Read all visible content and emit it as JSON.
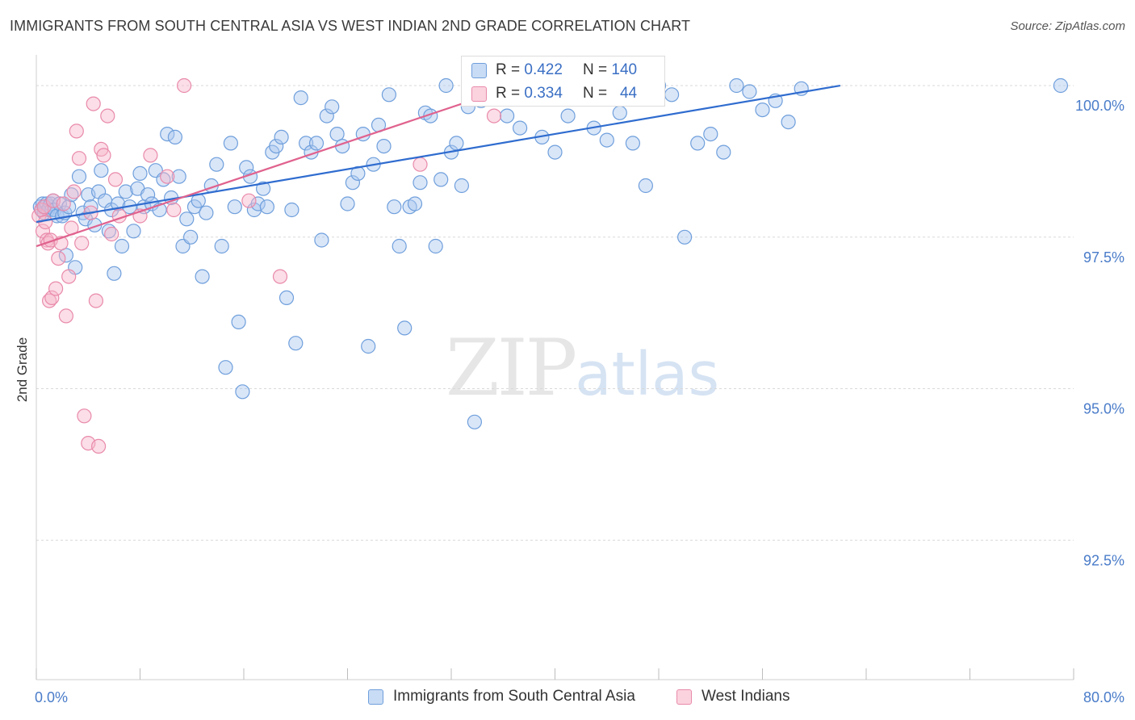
{
  "header": {
    "title": "IMMIGRANTS FROM SOUTH CENTRAL ASIA VS WEST INDIAN 2ND GRADE CORRELATION CHART",
    "source": "Source: ZipAtlas.com"
  },
  "watermark": {
    "zip": "ZIP",
    "atlas": "atlas"
  },
  "stats": {
    "rows": [
      {
        "r_label": "R =",
        "r_value": "0.422",
        "n_label": "N =",
        "n_value": "140",
        "color": "#aac8f0"
      },
      {
        "r_label": "R =",
        "r_value": "0.334",
        "n_label": "N =",
        "n_value": "44",
        "color": "#f7b6c9"
      }
    ]
  },
  "legend": {
    "items": [
      {
        "label": "Immigrants from South Central Asia",
        "color": "#aac8f0"
      },
      {
        "label": "West Indians",
        "color": "#f7b6c9"
      }
    ]
  },
  "chart_data": {
    "type": "scatter",
    "title": "IMMIGRANTS FROM SOUTH CENTRAL ASIA VS WEST INDIAN 2ND GRADE CORRELATION CHART",
    "xlabel": "",
    "ylabel": "2nd Grade",
    "xlim": [
      0,
      80
    ],
    "ylim": [
      90.2,
      100.4
    ],
    "x_tick_labels": [
      "0.0%",
      "80.0%"
    ],
    "y_ticks": [
      92.5,
      95.0,
      97.5,
      100.0
    ],
    "y_tick_labels": [
      "92.5%",
      "95.0%",
      "97.5%",
      "100.0%"
    ],
    "grid": true,
    "legend_position": "bottom",
    "series": [
      {
        "name": "Immigrants from South Central Asia",
        "color": "#6f9fdc",
        "fill": "#aac8f0",
        "trend": {
          "x": [
            0,
            62
          ],
          "y": [
            97.75,
            100.0
          ]
        },
        "points": [
          [
            0.3,
            98.0
          ],
          [
            0.4,
            97.95
          ],
          [
            0.5,
            98.05
          ],
          [
            0.6,
            97.9
          ],
          [
            0.7,
            98.0
          ],
          [
            0.8,
            98.05
          ],
          [
            0.9,
            97.95
          ],
          [
            1.0,
            98.0
          ],
          [
            1.1,
            98.05
          ],
          [
            1.2,
            97.95
          ],
          [
            1.3,
            98.1
          ],
          [
            1.4,
            97.95
          ],
          [
            1.6,
            97.85
          ],
          [
            1.8,
            98.05
          ],
          [
            2.0,
            97.85
          ],
          [
            2.2,
            97.9
          ],
          [
            2.3,
            97.2
          ],
          [
            2.5,
            98.0
          ],
          [
            2.7,
            98.2
          ],
          [
            3.0,
            97.0
          ],
          [
            3.3,
            98.5
          ],
          [
            3.6,
            97.9
          ],
          [
            3.8,
            97.8
          ],
          [
            4.0,
            98.2
          ],
          [
            4.2,
            98.0
          ],
          [
            4.5,
            97.7
          ],
          [
            4.8,
            98.25
          ],
          [
            5.0,
            98.6
          ],
          [
            5.3,
            98.1
          ],
          [
            5.6,
            97.6
          ],
          [
            5.8,
            97.95
          ],
          [
            6.0,
            96.9
          ],
          [
            6.3,
            98.05
          ],
          [
            6.6,
            97.35
          ],
          [
            6.9,
            98.25
          ],
          [
            7.2,
            98.0
          ],
          [
            7.5,
            97.6
          ],
          [
            7.8,
            98.3
          ],
          [
            8.0,
            98.55
          ],
          [
            8.3,
            98.0
          ],
          [
            8.6,
            98.2
          ],
          [
            8.9,
            98.05
          ],
          [
            9.2,
            98.6
          ],
          [
            9.5,
            97.95
          ],
          [
            9.8,
            98.45
          ],
          [
            10.1,
            99.2
          ],
          [
            10.4,
            98.15
          ],
          [
            10.7,
            99.15
          ],
          [
            11.0,
            98.5
          ],
          [
            11.3,
            97.35
          ],
          [
            11.6,
            97.8
          ],
          [
            11.9,
            97.5
          ],
          [
            12.2,
            98.0
          ],
          [
            12.5,
            98.1
          ],
          [
            12.8,
            96.85
          ],
          [
            13.1,
            97.9
          ],
          [
            13.5,
            98.35
          ],
          [
            13.9,
            98.7
          ],
          [
            14.3,
            97.35
          ],
          [
            14.6,
            95.35
          ],
          [
            15.0,
            99.05
          ],
          [
            15.3,
            98.0
          ],
          [
            15.6,
            96.1
          ],
          [
            15.9,
            94.95
          ],
          [
            16.2,
            98.65
          ],
          [
            16.5,
            98.5
          ],
          [
            16.8,
            97.95
          ],
          [
            17.1,
            98.05
          ],
          [
            17.5,
            98.3
          ],
          [
            17.8,
            98.0
          ],
          [
            18.2,
            98.9
          ],
          [
            18.5,
            99.0
          ],
          [
            18.9,
            99.15
          ],
          [
            19.3,
            96.5
          ],
          [
            19.7,
            97.95
          ],
          [
            20.0,
            95.75
          ],
          [
            20.4,
            99.8
          ],
          [
            20.8,
            99.05
          ],
          [
            21.2,
            98.9
          ],
          [
            21.6,
            99.05
          ],
          [
            22.0,
            97.45
          ],
          [
            22.4,
            99.5
          ],
          [
            22.8,
            99.65
          ],
          [
            23.2,
            99.2
          ],
          [
            23.6,
            99.0
          ],
          [
            24.0,
            98.05
          ],
          [
            24.4,
            98.4
          ],
          [
            24.8,
            98.55
          ],
          [
            25.2,
            99.2
          ],
          [
            25.6,
            95.7
          ],
          [
            26.0,
            98.7
          ],
          [
            26.4,
            99.35
          ],
          [
            26.8,
            99.0
          ],
          [
            27.2,
            99.85
          ],
          [
            27.6,
            98.0
          ],
          [
            28.0,
            97.35
          ],
          [
            28.4,
            96.0
          ],
          [
            28.8,
            98.0
          ],
          [
            29.2,
            98.05
          ],
          [
            29.6,
            98.4
          ],
          [
            30.0,
            99.55
          ],
          [
            30.4,
            99.5
          ],
          [
            30.8,
            97.35
          ],
          [
            31.2,
            98.45
          ],
          [
            31.6,
            100.0
          ],
          [
            32.0,
            98.9
          ],
          [
            32.4,
            99.05
          ],
          [
            32.8,
            98.35
          ],
          [
            33.3,
            99.65
          ],
          [
            33.8,
            94.45
          ],
          [
            34.3,
            99.75
          ],
          [
            34.8,
            100.0
          ],
          [
            35.3,
            100.0
          ],
          [
            35.8,
            100.0
          ],
          [
            36.3,
            99.5
          ],
          [
            36.8,
            100.0
          ],
          [
            37.3,
            99.3
          ],
          [
            38.0,
            100.0
          ],
          [
            39.0,
            99.15
          ],
          [
            40.0,
            98.9
          ],
          [
            41.0,
            99.5
          ],
          [
            42.0,
            100.0
          ],
          [
            43.0,
            99.3
          ],
          [
            44.0,
            99.1
          ],
          [
            45.0,
            99.55
          ],
          [
            46.0,
            99.05
          ],
          [
            47.0,
            98.35
          ],
          [
            48.0,
            100.0
          ],
          [
            49.0,
            99.85
          ],
          [
            50.0,
            97.5
          ],
          [
            51.0,
            99.05
          ],
          [
            52.0,
            99.2
          ],
          [
            53.0,
            98.9
          ],
          [
            54.0,
            100.0
          ],
          [
            55.0,
            99.9
          ],
          [
            56.0,
            99.6
          ],
          [
            57.0,
            99.75
          ],
          [
            58.0,
            99.4
          ],
          [
            59.0,
            99.95
          ],
          [
            79.0,
            100.0
          ]
        ]
      },
      {
        "name": "West Indians",
        "color": "#e98aaa",
        "fill": "#f7b6c9",
        "trend": {
          "x": [
            0,
            37
          ],
          "y": [
            97.35,
            100.0
          ]
        },
        "points": [
          [
            0.2,
            97.85
          ],
          [
            0.4,
            97.95
          ],
          [
            0.5,
            97.6
          ],
          [
            0.6,
            98.0
          ],
          [
            0.7,
            97.75
          ],
          [
            0.8,
            97.45
          ],
          [
            0.9,
            97.4
          ],
          [
            1.0,
            96.45
          ],
          [
            1.1,
            97.45
          ],
          [
            1.2,
            96.5
          ],
          [
            1.3,
            98.1
          ],
          [
            1.5,
            96.65
          ],
          [
            1.7,
            97.15
          ],
          [
            1.9,
            97.4
          ],
          [
            2.1,
            98.05
          ],
          [
            2.3,
            96.2
          ],
          [
            2.5,
            96.85
          ],
          [
            2.7,
            97.65
          ],
          [
            2.9,
            98.25
          ],
          [
            3.1,
            99.25
          ],
          [
            3.3,
            98.8
          ],
          [
            3.5,
            97.4
          ],
          [
            3.7,
            94.55
          ],
          [
            4.0,
            94.1
          ],
          [
            4.2,
            97.9
          ],
          [
            4.4,
            99.7
          ],
          [
            4.6,
            96.45
          ],
          [
            4.8,
            94.05
          ],
          [
            5.0,
            98.95
          ],
          [
            5.2,
            98.85
          ],
          [
            5.5,
            99.5
          ],
          [
            5.8,
            97.55
          ],
          [
            6.1,
            98.45
          ],
          [
            6.4,
            97.85
          ],
          [
            8.0,
            97.85
          ],
          [
            8.8,
            98.85
          ],
          [
            10.1,
            98.5
          ],
          [
            10.6,
            97.95
          ],
          [
            11.4,
            100.0
          ],
          [
            16.4,
            98.1
          ],
          [
            18.8,
            96.85
          ],
          [
            29.6,
            98.7
          ],
          [
            35.3,
            99.5
          ],
          [
            37.6,
            100.0
          ]
        ]
      }
    ]
  }
}
